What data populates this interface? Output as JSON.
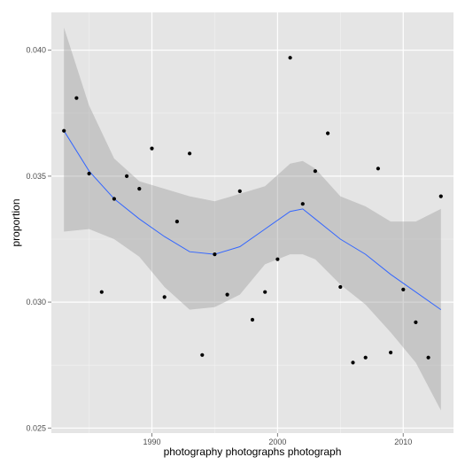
{
  "chart_data": {
    "type": "scatter",
    "xlabel": "photography photographs photograph",
    "ylabel": "proportion",
    "xlim": [
      1982,
      2014
    ],
    "ylim": [
      0.0248,
      0.0415
    ],
    "x_ticks": [
      1990,
      2000,
      2010
    ],
    "y_ticks": [
      0.025,
      0.03,
      0.035,
      0.04
    ],
    "x_tick_labels": [
      "1990",
      "2000",
      "2010"
    ],
    "y_tick_labels": [
      "0.025",
      "0.030",
      "0.035",
      "0.040"
    ],
    "grid": true,
    "colors": {
      "panel_background": "#e5e5e5",
      "grid_major": "#ffffff",
      "grid_minor": "#f2f2f2",
      "points": "#000000",
      "smooth_line": "#3366ff",
      "confidence_band": "#999999",
      "tick_marks": "#7f7f7f"
    },
    "points": {
      "x": [
        1983,
        1984,
        1985,
        1986,
        1987,
        1988,
        1989,
        1990,
        1991,
        1992,
        1993,
        1994,
        1995,
        1996,
        1997,
        1998,
        1999,
        2000,
        2001,
        2002,
        2003,
        2004,
        2005,
        2006,
        2007,
        2008,
        2009,
        2010,
        2011,
        2012,
        2013
      ],
      "y": [
        0.0368,
        0.0381,
        0.0351,
        0.0304,
        0.0341,
        0.035,
        0.0345,
        0.0361,
        0.0302,
        0.0332,
        0.0359,
        0.0279,
        0.0319,
        0.0303,
        0.0344,
        0.0293,
        0.0304,
        0.0317,
        0.0397,
        0.0339,
        0.0352,
        0.0367,
        0.0306,
        0.0276,
        0.0278,
        0.0353,
        0.028,
        0.0305,
        0.0292,
        0.0278,
        0.0342
      ]
    },
    "smooth": {
      "x": [
        1983,
        1985,
        1987,
        1989,
        1991,
        1993,
        1995,
        1997,
        1999,
        2001,
        2002,
        2003,
        2005,
        2007,
        2009,
        2011,
        2013
      ],
      "y": [
        0.0368,
        0.0352,
        0.0341,
        0.0333,
        0.0326,
        0.032,
        0.0319,
        0.0322,
        0.0329,
        0.0336,
        0.0337,
        0.0333,
        0.0325,
        0.0319,
        0.0311,
        0.0304,
        0.0297
      ],
      "lower": [
        0.0328,
        0.0329,
        0.0325,
        0.0318,
        0.0306,
        0.0297,
        0.0298,
        0.0303,
        0.0315,
        0.0319,
        0.0319,
        0.0317,
        0.0307,
        0.0299,
        0.0288,
        0.0276,
        0.0257
      ],
      "upper": [
        0.0409,
        0.0378,
        0.0357,
        0.0348,
        0.0345,
        0.0342,
        0.034,
        0.0343,
        0.0346,
        0.0355,
        0.0356,
        0.0353,
        0.0342,
        0.0338,
        0.0332,
        0.0332,
        0.0337
      ]
    }
  }
}
